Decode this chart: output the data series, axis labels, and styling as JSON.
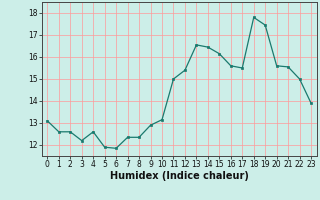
{
  "x": [
    0,
    1,
    2,
    3,
    4,
    5,
    6,
    7,
    8,
    9,
    10,
    11,
    12,
    13,
    14,
    15,
    16,
    17,
    18,
    19,
    20,
    21,
    22,
    23
  ],
  "y": [
    13.1,
    12.6,
    12.6,
    12.2,
    12.6,
    11.9,
    11.85,
    12.35,
    12.35,
    12.9,
    13.15,
    15.0,
    15.4,
    16.55,
    16.45,
    16.15,
    15.6,
    15.5,
    17.8,
    17.45,
    15.6,
    15.55,
    15.0,
    13.9
  ],
  "xlabel": "Humidex (Indice chaleur)",
  "ylim": [
    11.5,
    18.5
  ],
  "xlim": [
    -0.5,
    23.5
  ],
  "yticks": [
    12,
    13,
    14,
    15,
    16,
    17,
    18
  ],
  "xticks": [
    0,
    1,
    2,
    3,
    4,
    5,
    6,
    7,
    8,
    9,
    10,
    11,
    12,
    13,
    14,
    15,
    16,
    17,
    18,
    19,
    20,
    21,
    22,
    23
  ],
  "line_color": "#1a7a6e",
  "bg_color": "#cceee8",
  "grid_color": "#ff9999",
  "tick_fontsize": 5.5,
  "xlabel_fontsize": 7.0
}
